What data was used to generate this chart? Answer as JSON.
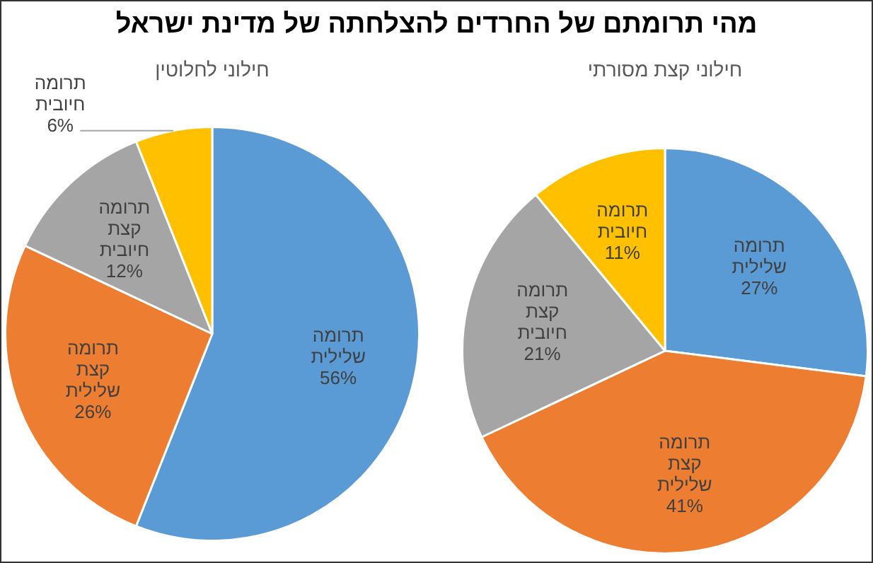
{
  "chart_data": [
    {
      "type": "pie",
      "title": "מהי תרומתם של החרדים להצלחתה של מדינת ישראל",
      "subtitle": "חילוני לחלוטין",
      "categories": [
        "תרומה שלילית",
        "תרומה קצת שלילית",
        "תרומה קצת חיובית",
        "תרומה חיובית"
      ],
      "values": [
        56,
        26,
        12,
        6
      ],
      "value_labels": [
        "56%",
        "26%",
        "12%",
        "6%"
      ],
      "colors": [
        "#5b9bd5",
        "#ed7d31",
        "#a5a5a5",
        "#ffc000"
      ],
      "legend": false
    },
    {
      "type": "pie",
      "subtitle": "חילוני קצת מסורתי",
      "categories": [
        "תרומה שלילית",
        "תרומה קצת שלילית",
        "תרומה קצת חיובית",
        "תרומה חיובית"
      ],
      "values": [
        27,
        41,
        21,
        11
      ],
      "value_labels": [
        "27%",
        "41%",
        "21%",
        "11%"
      ],
      "colors": [
        "#5b9bd5",
        "#ed7d31",
        "#a5a5a5",
        "#ffc000"
      ],
      "legend": false
    }
  ]
}
